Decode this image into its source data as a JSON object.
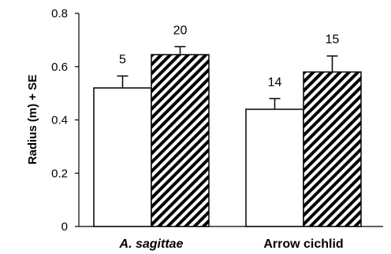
{
  "chart_data": {
    "type": "bar",
    "ylabel": "Radius (m) + SE",
    "ylim": [
      0,
      0.8
    ],
    "yticks": [
      0,
      0.2,
      0.4,
      0.6,
      0.8
    ],
    "ytick_labels": [
      "0",
      "0.2",
      "0.4",
      "0.6",
      "0.8"
    ],
    "categories": [
      "A. sagittae",
      "Arrow cichlid"
    ],
    "category_italic": [
      true,
      false
    ],
    "series": [
      {
        "values": [
          0.52,
          0.44
        ],
        "errors": [
          0.045,
          0.04
        ],
        "n_labels": [
          "5",
          "14"
        ],
        "fill": "#ffffff",
        "pattern": "none"
      },
      {
        "values": [
          0.645,
          0.58
        ],
        "errors": [
          0.03,
          0.06
        ],
        "n_labels": [
          "20",
          "15"
        ],
        "fill": "#000000",
        "pattern": "diagonal-stripes"
      }
    ],
    "grid": false,
    "legend": "none"
  }
}
